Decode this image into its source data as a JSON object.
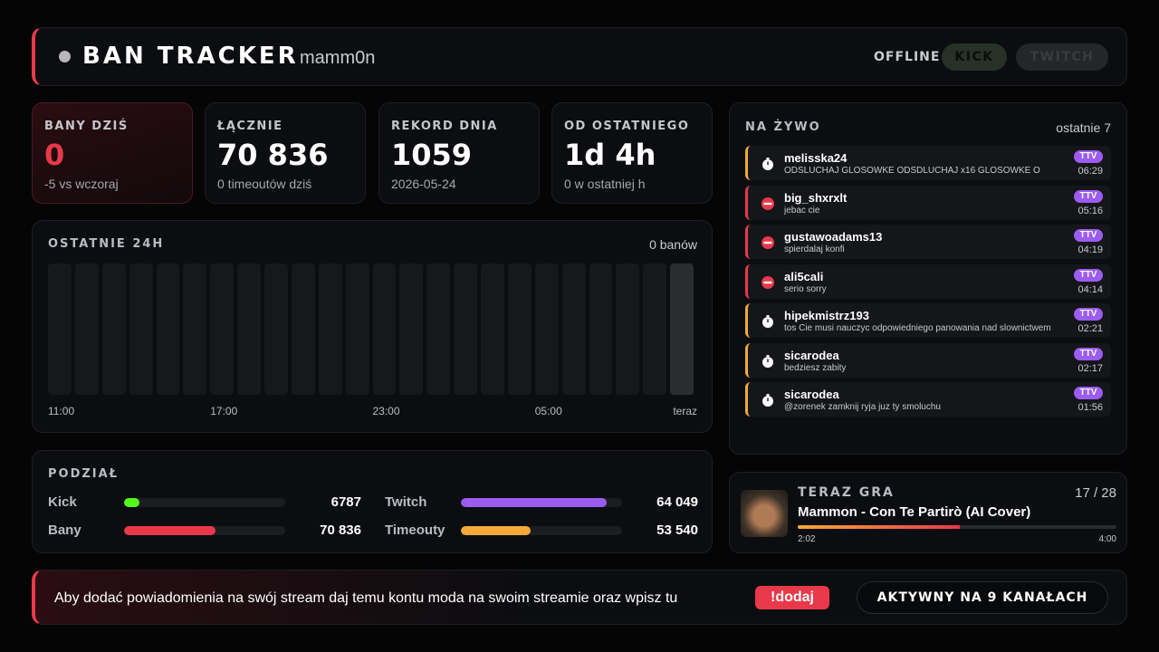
{
  "header": {
    "title": "BAN TRACKER",
    "channel": "mamm0n",
    "status": "OFFLINE",
    "buttons": [
      "KICK",
      "TWITCH"
    ]
  },
  "stats": [
    {
      "label": "BANY DZIŚ",
      "value": "0",
      "sub": "-5 vs wczoraj"
    },
    {
      "label": "ŁĄCZNIE",
      "value": "70 836",
      "sub": "0 timeoutów dziś"
    },
    {
      "label": "REKORD DNIA",
      "value": "1059",
      "sub": "2026-05-24"
    },
    {
      "label": "OD OSTATNIEGO",
      "value": "1d 4h",
      "sub": "0 w ostatniej h"
    }
  ],
  "last24h": {
    "title": "OSTATNIE 24H",
    "summary": "0 banów",
    "hourly": [
      0,
      0,
      0,
      0,
      0,
      0,
      0,
      0,
      0,
      0,
      0,
      0,
      0,
      0,
      0,
      0,
      0,
      0,
      0,
      0,
      0,
      0,
      0,
      0
    ],
    "xlabels": [
      "11:00",
      "17:00",
      "23:00",
      "05:00",
      "teraz"
    ]
  },
  "split": {
    "title": "PODZIAŁ",
    "pairs": [
      {
        "names": [
          "Kick",
          "Twitch"
        ],
        "values": [
          6787,
          64049
        ],
        "value_labels": [
          "6787",
          "64 049"
        ],
        "colors": [
          "#53fc18",
          "#9b5cf0"
        ]
      },
      {
        "names": [
          "Bany",
          "Timeouty"
        ],
        "values": [
          70836,
          53540
        ],
        "value_labels": [
          "70 836",
          "53 540"
        ],
        "colors": [
          "#e8394a",
          "#f5a93a"
        ]
      }
    ]
  },
  "live": {
    "title": "NA ŻYWO",
    "summary": "ostatnie 7",
    "items": [
      {
        "user": "melisska24",
        "message": "ODSLUCHAJ GLOSOWKE ODSDLUCHAJ x16 GLOSOWKE O",
        "badge": "TTV",
        "time": "06:29",
        "kind": "timeout"
      },
      {
        "user": "big_shxrxlt",
        "message": "jebac cie",
        "badge": "TTV",
        "time": "05:16",
        "kind": "ban"
      },
      {
        "user": "gustawoadams13",
        "message": "spierdalaj konfi",
        "badge": "TTV",
        "time": "04:19",
        "kind": "ban"
      },
      {
        "user": "ali5cali",
        "message": "serio sorry",
        "badge": "TTV",
        "time": "04:14",
        "kind": "ban"
      },
      {
        "user": "hipekmistrz193",
        "message": "tos Cie musi nauczyc odpowiedniego panowania nad slownictwem",
        "badge": "TTV",
        "time": "02:21",
        "kind": "timeout"
      },
      {
        "user": "sicarodea",
        "message": "bedziesz zabity",
        "badge": "TTV",
        "time": "02:17",
        "kind": "timeout"
      },
      {
        "user": "sicarodea",
        "message": "@zorenek zamknij ryja juz ty smoluchu",
        "badge": "TTV",
        "time": "01:56",
        "kind": "timeout"
      }
    ]
  },
  "now_playing": {
    "title": "TERAZ GRA",
    "track": "17 / 28",
    "song": "Mammon - Con Te Partirò (AI Cover)",
    "elapsed": "2:02",
    "duration": "4:00"
  },
  "footer": {
    "text": "Aby dodać powiadomienia na swój stream daj temu kontu moda na swoim streamie oraz wpisz tu",
    "command": "!dodaj",
    "status": "AKTYWNY NA 9 KANAŁACH"
  }
}
